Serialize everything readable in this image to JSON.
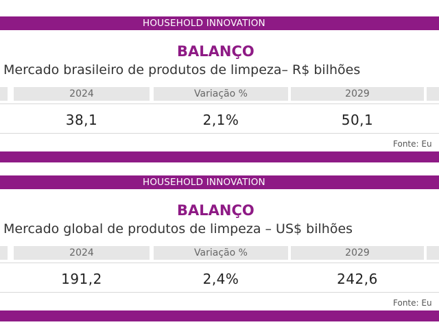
{
  "panels": [
    {
      "band_label": "HOUSEHOLD INNOVATION",
      "title": "BALANÇO",
      "subtitle": "Mercado brasileiro de produtos de limpeza– R$ bilhões",
      "headers": [
        "2024",
        "Variação %",
        "2029"
      ],
      "values": [
        "38,1",
        "2,1%",
        "50,1"
      ],
      "source": "Fonte: Eu"
    },
    {
      "band_label": "HOUSEHOLD INNOVATION",
      "title": "BALANÇO",
      "subtitle": "Mercado global de produtos de limpeza – US$ bilhões",
      "headers": [
        "2024",
        "Variação %",
        "2029"
      ],
      "values": [
        "191,2",
        "2,4%",
        "242,6"
      ],
      "source": "Fonte: Eu"
    }
  ],
  "colors": {
    "brand_purple": "#8e1a85",
    "header_gray": "#e6e6e6"
  }
}
